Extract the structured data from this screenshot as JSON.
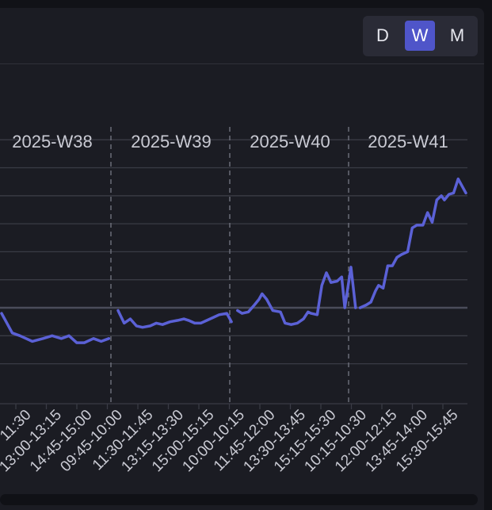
{
  "toggle": {
    "options": [
      "D",
      "W",
      "M"
    ],
    "selected": "W"
  },
  "colors": {
    "line": "#5b61d6",
    "background": "#1b1c23",
    "grid": "#3a3b45",
    "baseline": "#4a4c5a",
    "text": "#c9cad3"
  },
  "chart_data": {
    "type": "line",
    "title": "",
    "xlabel": "",
    "ylabel": "",
    "grid": true,
    "week_labels": [
      "2025-W38",
      "2025-W39",
      "2025-W40",
      "2025-W41"
    ],
    "tick_labels": [
      "11:30",
      "13:00-13:15",
      "14:45-15:00",
      "09:45-10:00",
      "11:30-11:45",
      "13:15-13:30",
      "15:00-15:15",
      "10:00-10:15",
      "11:45-12:00",
      "13:30-13:45",
      "15:15-15:30",
      "10:15-10:30",
      "12:00-12:15",
      "13:45-14:00",
      "15:30-15:45"
    ],
    "ylim": [
      -2,
      8
    ],
    "baseline": 0,
    "series": [
      {
        "values": [
          [
            0.0,
            -0.2
          ],
          [
            1.5,
            -0.5
          ],
          [
            3.5,
            -0.9
          ],
          [
            6.0,
            -1.0
          ],
          [
            8.0,
            -1.1
          ],
          [
            10.0,
            -1.2
          ],
          [
            13.5,
            -1.1
          ],
          [
            16.5,
            -1.0
          ],
          [
            19.5,
            -1.1
          ],
          [
            22.0,
            -1.0
          ],
          [
            24.5,
            -1.25
          ],
          [
            27.0,
            -1.25
          ],
          [
            30.0,
            -1.1
          ],
          [
            32.5,
            -1.2
          ],
          [
            35.0,
            -1.1
          ],
          [
            38.0,
            -0.1
          ],
          [
            40.0,
            -0.55
          ],
          [
            42.0,
            -0.4
          ],
          [
            44.0,
            -0.65
          ],
          [
            46.0,
            -0.7
          ],
          [
            48.5,
            -0.65
          ],
          [
            50.5,
            -0.55
          ],
          [
            52.5,
            -0.6
          ],
          [
            55.0,
            -0.5
          ],
          [
            57.5,
            -0.45
          ],
          [
            59.5,
            -0.4
          ],
          [
            61.0,
            -0.45
          ],
          [
            63.0,
            -0.55
          ],
          [
            65.0,
            -0.55
          ],
          [
            67.0,
            -0.45
          ],
          [
            69.0,
            -0.35
          ],
          [
            71.0,
            -0.25
          ],
          [
            73.5,
            -0.2
          ],
          [
            75.0,
            -0.5
          ],
          [
            77.0,
            -0.1
          ],
          [
            78.5,
            -0.2
          ],
          [
            80.5,
            -0.15
          ],
          [
            82.5,
            0.1
          ],
          [
            84.0,
            0.3
          ],
          [
            85.0,
            0.5
          ],
          [
            86.5,
            0.3
          ],
          [
            88.5,
            -0.1
          ],
          [
            91.0,
            -0.15
          ],
          [
            92.5,
            -0.55
          ],
          [
            94.5,
            -0.6
          ],
          [
            96.5,
            -0.55
          ],
          [
            98.5,
            -0.4
          ],
          [
            100.0,
            -0.15
          ],
          [
            101.0,
            -0.2
          ],
          [
            103.0,
            -0.25
          ],
          [
            104.5,
            0.8
          ],
          [
            106.0,
            1.25
          ],
          [
            107.5,
            0.9
          ],
          [
            109.5,
            0.95
          ],
          [
            111.0,
            1.1
          ],
          [
            112.0,
            0.0
          ],
          [
            114.0,
            1.45
          ],
          [
            115.5,
            0.0
          ],
          [
            117.0,
            0.0
          ],
          [
            119.0,
            0.1
          ],
          [
            120.5,
            0.2
          ],
          [
            122.0,
            0.6
          ],
          [
            123.0,
            0.8
          ],
          [
            124.5,
            0.7
          ],
          [
            126.0,
            1.5
          ],
          [
            127.5,
            1.5
          ],
          [
            129.0,
            1.8
          ],
          [
            130.5,
            1.9
          ],
          [
            132.5,
            2.0
          ],
          [
            134.0,
            2.85
          ],
          [
            135.5,
            2.95
          ],
          [
            137.5,
            2.95
          ],
          [
            139.0,
            3.4
          ],
          [
            140.5,
            3.05
          ],
          [
            142.0,
            3.85
          ],
          [
            143.5,
            4.0
          ],
          [
            144.5,
            3.85
          ],
          [
            146.0,
            4.05
          ],
          [
            147.5,
            4.1
          ],
          [
            149.0,
            4.6
          ],
          [
            150.5,
            4.3
          ],
          [
            151.5,
            4.1
          ]
        ]
      }
    ]
  }
}
